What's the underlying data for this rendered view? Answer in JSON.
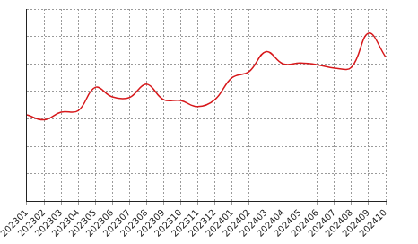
{
  "chart_data": {
    "type": "line",
    "categories": [
      "202301",
      "202302",
      "202303",
      "202304",
      "202305",
      "202306",
      "202307",
      "202308",
      "202309",
      "202310",
      "202311",
      "202312",
      "202401",
      "202402",
      "202403",
      "202404",
      "202405",
      "202406",
      "202407",
      "202408",
      "202409",
      "202410"
    ],
    "values": [
      3.15,
      2.97,
      3.25,
      3.3,
      4.15,
      3.8,
      3.78,
      4.27,
      3.7,
      3.67,
      3.45,
      3.7,
      4.5,
      4.72,
      5.45,
      5.0,
      5.03,
      4.97,
      4.85,
      4.88,
      6.12,
      5.25
    ],
    "color": "#d7191c",
    "ylim": [
      0,
      7
    ],
    "yticks": [
      0,
      1,
      2,
      3,
      4,
      5,
      6,
      7
    ],
    "grid": true,
    "tick_labels": "x"
  }
}
